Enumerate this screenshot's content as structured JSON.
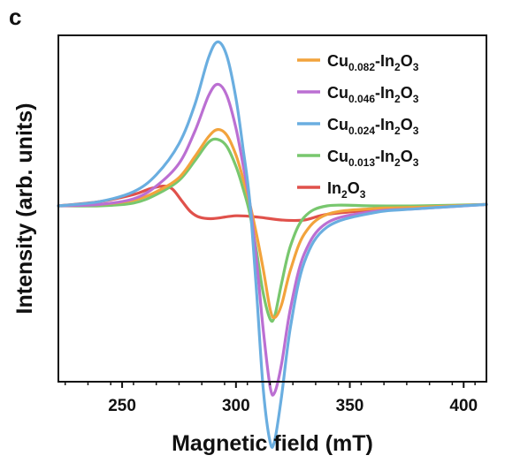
{
  "panel_label": "c",
  "chart_data": {
    "type": "line",
    "xlabel": "Magnetic field (mT)",
    "ylabel": "Intensity (arb. units)",
    "xlim": [
      222,
      410
    ],
    "x_ticks": [
      250,
      300,
      350,
      400
    ],
    "y_ticks_labeled": false,
    "grid": false,
    "legend_position": "top-right",
    "series": [
      {
        "name": "Cu0.082-In2O3",
        "legend": {
          "pre": "Cu",
          "sub1": "0.082",
          "mid": "-In",
          "sub2": "2",
          "post": "O",
          "sub3": "3"
        },
        "color": "#F2A33C",
        "x": [
          222,
          240,
          255,
          265,
          275,
          282,
          288,
          292,
          296,
          300,
          303,
          306,
          309,
          312,
          315,
          317,
          320,
          324,
          330,
          340,
          360,
          380,
          410
        ],
        "y": [
          0.0,
          0.01,
          0.04,
          0.1,
          0.2,
          0.35,
          0.49,
          0.54,
          0.5,
          0.36,
          0.2,
          0.02,
          -0.2,
          -0.45,
          -0.73,
          -0.79,
          -0.7,
          -0.45,
          -0.2,
          -0.06,
          -0.02,
          -0.01,
          0.01
        ]
      },
      {
        "name": "Cu0.046-In2O3",
        "legend": {
          "pre": "Cu",
          "sub1": "0.046",
          "mid": "-In",
          "sub2": "2",
          "post": "O",
          "sub3": "3"
        },
        "color": "#BB6FD2",
        "x": [
          222,
          240,
          255,
          265,
          275,
          282,
          288,
          292,
          296,
          300,
          303,
          306,
          309,
          312,
          315,
          317,
          320,
          324,
          330,
          340,
          360,
          380,
          410
        ],
        "y": [
          0.0,
          0.01,
          0.05,
          0.14,
          0.3,
          0.53,
          0.78,
          0.86,
          0.78,
          0.55,
          0.3,
          0.03,
          -0.38,
          -0.88,
          -1.28,
          -1.32,
          -1.12,
          -0.72,
          -0.34,
          -0.12,
          -0.04,
          -0.02,
          0.01
        ]
      },
      {
        "name": "Cu0.024-In2O3",
        "legend": {
          "pre": "Cu",
          "sub1": "0.024",
          "mid": "-In",
          "sub2": "2",
          "post": "O",
          "sub3": "3"
        },
        "color": "#6AAEE0",
        "x": [
          222,
          240,
          255,
          265,
          275,
          282,
          288,
          292,
          296,
          300,
          303,
          306,
          309,
          312,
          315,
          317,
          320,
          324,
          330,
          340,
          360,
          380,
          410
        ],
        "y": [
          0.0,
          0.03,
          0.1,
          0.22,
          0.44,
          0.72,
          1.05,
          1.16,
          1.06,
          0.76,
          0.42,
          0.04,
          -0.6,
          -1.3,
          -1.67,
          -1.66,
          -1.35,
          -0.85,
          -0.4,
          -0.15,
          -0.05,
          -0.02,
          0.01
        ]
      },
      {
        "name": "Cu0.013-In2O3",
        "legend": {
          "pre": "Cu",
          "sub1": "0.013",
          "mid": "-In",
          "sub2": "2",
          "post": "O",
          "sub3": "3"
        },
        "color": "#78C76E",
        "x": [
          222,
          240,
          255,
          265,
          275,
          282,
          288,
          292,
          296,
          300,
          303,
          306,
          309,
          312,
          315,
          317,
          320,
          324,
          330,
          340,
          360,
          380,
          410
        ],
        "y": [
          0.0,
          0.0,
          0.02,
          0.08,
          0.18,
          0.32,
          0.45,
          0.47,
          0.42,
          0.28,
          0.13,
          -0.05,
          -0.32,
          -0.62,
          -0.8,
          -0.78,
          -0.55,
          -0.28,
          -0.08,
          0.0,
          0.0,
          0.0,
          0.01
        ]
      },
      {
        "name": "In2O3",
        "legend": {
          "pre": "In",
          "sub1": "2",
          "mid": "O",
          "sub2": "3",
          "post": "",
          "sub3": ""
        },
        "color": "#E0514B",
        "x": [
          222,
          240,
          255,
          262,
          268,
          272,
          276,
          280,
          284,
          290,
          300,
          310,
          320,
          330,
          340,
          360,
          380,
          410
        ],
        "y": [
          0.0,
          0.03,
          0.08,
          0.12,
          0.14,
          0.12,
          0.04,
          -0.04,
          -0.08,
          -0.09,
          -0.07,
          -0.08,
          -0.1,
          -0.1,
          -0.06,
          -0.03,
          -0.01,
          0.01
        ]
      }
    ]
  }
}
